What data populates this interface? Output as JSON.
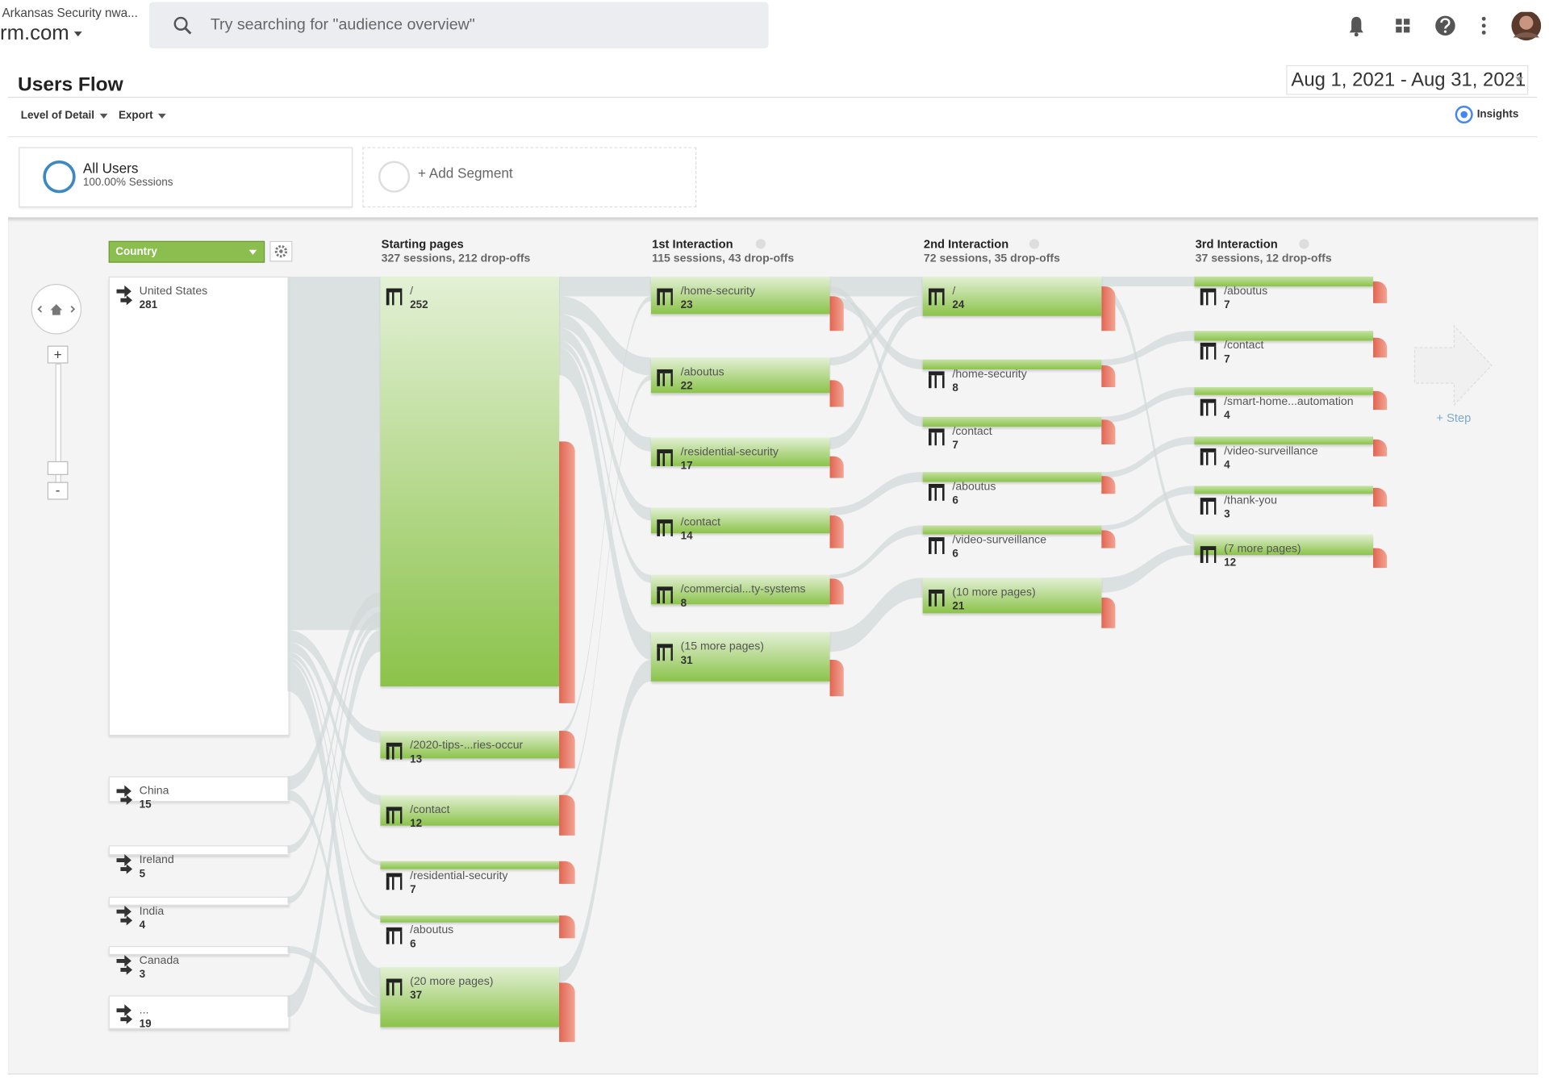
{
  "header": {
    "account": "Arkansas Security nwa...",
    "property": "rm.com",
    "search_placeholder": "Try searching for \"audience overview\""
  },
  "report": {
    "title": "Users Flow",
    "date_range": "Aug 1, 2021 - Aug 31, 2021",
    "level_of_detail": "Level of Detail",
    "export": "Export",
    "insights": "Insights"
  },
  "segments": [
    {
      "name": "All Users",
      "detail": "100.00% Sessions"
    },
    {
      "name": "+ Add Segment"
    }
  ],
  "flow": {
    "dimension": "Country",
    "zoom_in": "+",
    "zoom_out": "-",
    "countries": [
      {
        "label": "United States",
        "value": 281
      },
      {
        "label": "China",
        "value": 15
      },
      {
        "label": "Ireland",
        "value": 5
      },
      {
        "label": "India",
        "value": 4
      },
      {
        "label": "Canada",
        "value": 3
      },
      {
        "label": "...",
        "value": 19
      }
    ],
    "columns": [
      {
        "title": "Starting pages",
        "summary": "327 sessions, 212 drop-offs",
        "nodes": [
          {
            "label": "/",
            "value": 252
          },
          {
            "label": "/2020-tips-...ries-occur",
            "value": 13
          },
          {
            "label": "/contact",
            "value": 12
          },
          {
            "label": "/residential-security",
            "value": 7
          },
          {
            "label": "/aboutus",
            "value": 6
          },
          {
            "label": "(20 more pages)",
            "value": 37
          }
        ]
      },
      {
        "title": "1st Interaction",
        "summary": "115 sessions, 43 drop-offs",
        "nodes": [
          {
            "label": "/home-security",
            "value": 23
          },
          {
            "label": "/aboutus",
            "value": 22
          },
          {
            "label": "/residential-security",
            "value": 17
          },
          {
            "label": "/contact",
            "value": 14
          },
          {
            "label": "/commercial...ty-systems",
            "value": 8
          },
          {
            "label": "(15 more pages)",
            "value": 31
          }
        ]
      },
      {
        "title": "2nd Interaction",
        "summary": "72 sessions, 35 drop-offs",
        "nodes": [
          {
            "label": "/",
            "value": 24
          },
          {
            "label": "/home-security",
            "value": 8
          },
          {
            "label": "/contact",
            "value": 7
          },
          {
            "label": "/aboutus",
            "value": 6
          },
          {
            "label": "/video-surveillance",
            "value": 6
          },
          {
            "label": "(10 more pages)",
            "value": 21
          }
        ]
      },
      {
        "title": "3rd Interaction",
        "summary": "37 sessions, 12 drop-offs",
        "nodes": [
          {
            "label": "/aboutus",
            "value": 7
          },
          {
            "label": "/contact",
            "value": 7
          },
          {
            "label": "/smart-home...automation",
            "value": 4
          },
          {
            "label": "/video-surveillance",
            "value": 4
          },
          {
            "label": "/thank-you",
            "value": 3
          },
          {
            "label": "(7 more pages)",
            "value": 12
          }
        ]
      }
    ],
    "add_step": "+ Step"
  }
}
